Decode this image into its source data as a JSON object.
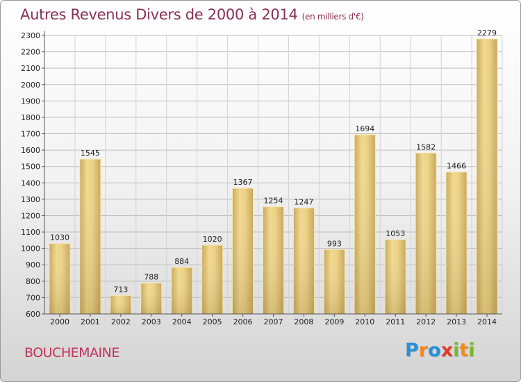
{
  "title": "Autres Revenus Divers de 2000 à 2014",
  "title_unit": "(en milliers d'€)",
  "city": "BOUCHEMAINE",
  "logo": {
    "letters": [
      "P",
      "r",
      "o",
      "x",
      "i",
      "t",
      "i"
    ],
    "colors": [
      "#2a8fd6",
      "#f08a1c",
      "#2a8fd6",
      "#e23a2a",
      "#79b82c",
      "#f08a1c",
      "#79b82c"
    ]
  },
  "chart_data": {
    "type": "bar",
    "categories": [
      "2000",
      "2001",
      "2002",
      "2003",
      "2004",
      "2005",
      "2006",
      "2007",
      "2008",
      "2009",
      "2010",
      "2011",
      "2012",
      "2013",
      "2014"
    ],
    "values": [
      1030,
      1545,
      713,
      788,
      884,
      1020,
      1367,
      1254,
      1247,
      993,
      1694,
      1053,
      1582,
      1466,
      2279
    ],
    "value_labels": [
      "1030",
      "1545",
      "713",
      "788",
      "884",
      "1020",
      "1367",
      "1254",
      "1247",
      "993",
      "1694",
      "1053",
      "1582",
      "1466",
      "2279"
    ],
    "y_ticks": [
      "600",
      "700",
      "800",
      "900",
      "1000",
      "1100",
      "1200",
      "1300",
      "1400",
      "1500",
      "1600",
      "1700",
      "1800",
      "1900",
      "2000",
      "2100",
      "2200",
      "2300"
    ],
    "ylim": [
      600,
      2300
    ],
    "grid": true,
    "bar_color": "#e4c97a"
  }
}
